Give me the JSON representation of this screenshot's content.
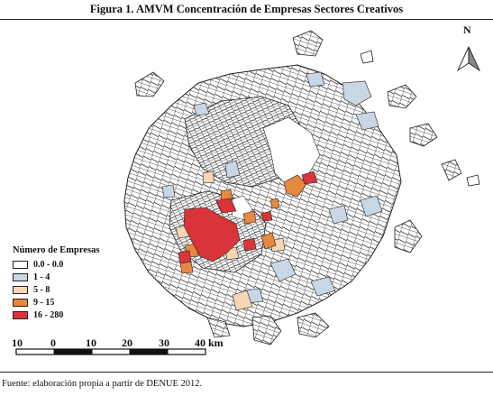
{
  "figure": {
    "title": "Figura 1. AMVM Concentración de Empresas Sectores Creativos",
    "source": "Fuente: elaboración propia a partir de DENUE 2012."
  },
  "legend": {
    "title": "Número de Empresas",
    "items": [
      {
        "label": "0.0 - 0.0",
        "color": "#ffffff"
      },
      {
        "label": "1 - 4",
        "color": "#c9d6e6"
      },
      {
        "label": "5 - 8",
        "color": "#f6d6b4"
      },
      {
        "label": "9 - 15",
        "color": "#e8873e"
      },
      {
        "label": "16 - 280",
        "color": "#d9343a"
      }
    ]
  },
  "north_arrow": {
    "label": "N",
    "icon": "north-arrow-icon"
  },
  "scale_bar": {
    "ticks": [
      "10",
      "0",
      "10",
      "20",
      "30",
      "40 km"
    ]
  }
}
